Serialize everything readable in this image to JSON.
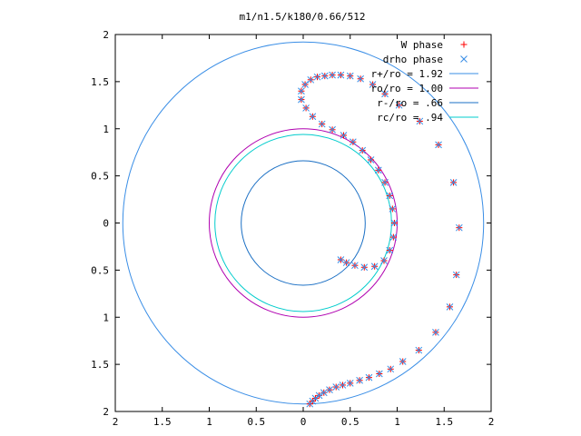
{
  "chart_data": {
    "type": "scatter",
    "title": "m1/n1.5/k180/0.66/512",
    "xlabel": "",
    "ylabel": "",
    "xlim": [
      -2,
      2
    ],
    "ylim": [
      -2,
      2
    ],
    "grid": false,
    "legend_position": "top-right",
    "x_tick_labels": [
      "2",
      "1.5",
      "1",
      "0.5",
      "0",
      "0.5",
      "1",
      "1.5",
      "2"
    ],
    "y_tick_labels": [
      "2",
      "1.5",
      "1",
      "0.5",
      "0",
      "0.5",
      "1",
      "1.5",
      "2"
    ],
    "x_tick_values": [
      -2,
      -1.5,
      -1,
      -0.5,
      0,
      0.5,
      1,
      1.5,
      2
    ],
    "y_tick_values": [
      2,
      1.5,
      1,
      0.5,
      0,
      -0.5,
      -1,
      -1.5,
      -2
    ],
    "series": [
      {
        "name": "W phase",
        "marker": "+",
        "color": "#ff0000",
        "points": [
          [
            0.07,
            -1.92
          ],
          [
            0.1,
            -1.89
          ],
          [
            0.13,
            -1.86
          ],
          [
            0.17,
            -1.83
          ],
          [
            0.22,
            -1.8
          ],
          [
            0.28,
            -1.77
          ],
          [
            0.35,
            -1.74
          ],
          [
            0.42,
            -1.72
          ],
          [
            0.5,
            -1.7
          ],
          [
            0.6,
            -1.67
          ],
          [
            0.7,
            -1.64
          ],
          [
            0.81,
            -1.6
          ],
          [
            0.93,
            -1.55
          ],
          [
            1.06,
            -1.47
          ],
          [
            1.23,
            -1.35
          ],
          [
            1.41,
            -1.16
          ],
          [
            1.56,
            -0.89
          ],
          [
            1.63,
            -0.55
          ],
          [
            1.66,
            -0.05
          ],
          [
            1.6,
            0.43
          ],
          [
            1.44,
            0.83
          ],
          [
            1.24,
            1.08
          ],
          [
            1.02,
            1.25
          ],
          [
            0.87,
            1.37
          ],
          [
            0.74,
            1.47
          ],
          [
            0.61,
            1.53
          ],
          [
            0.5,
            1.56
          ],
          [
            0.4,
            1.57
          ],
          [
            0.31,
            1.57
          ],
          [
            0.23,
            1.56
          ],
          [
            0.15,
            1.55
          ],
          [
            0.08,
            1.52
          ],
          [
            0.02,
            1.47
          ],
          [
            -0.02,
            1.4
          ],
          [
            -0.02,
            1.31
          ],
          [
            0.03,
            1.22
          ],
          [
            0.1,
            1.13
          ],
          [
            0.2,
            1.05
          ],
          [
            0.31,
            0.99
          ],
          [
            0.43,
            0.93
          ],
          [
            0.53,
            0.86
          ],
          [
            0.63,
            0.77
          ],
          [
            0.72,
            0.67
          ],
          [
            0.8,
            0.56
          ],
          [
            0.87,
            0.43
          ],
          [
            0.92,
            0.29
          ],
          [
            0.95,
            0.15
          ],
          [
            0.97,
            0.0
          ],
          [
            0.96,
            -0.15
          ],
          [
            0.92,
            -0.29
          ],
          [
            0.86,
            -0.4
          ],
          [
            0.76,
            -0.46
          ],
          [
            0.65,
            -0.47
          ],
          [
            0.55,
            -0.45
          ],
          [
            0.46,
            -0.42
          ],
          [
            0.4,
            -0.39
          ]
        ]
      },
      {
        "name": "drho phase",
        "marker": "x",
        "color": "#3a8ee6",
        "points": [
          [
            0.07,
            -1.92
          ],
          [
            0.1,
            -1.89
          ],
          [
            0.13,
            -1.86
          ],
          [
            0.17,
            -1.83
          ],
          [
            0.22,
            -1.8
          ],
          [
            0.28,
            -1.77
          ],
          [
            0.35,
            -1.74
          ],
          [
            0.42,
            -1.72
          ],
          [
            0.5,
            -1.7
          ],
          [
            0.6,
            -1.67
          ],
          [
            0.7,
            -1.64
          ],
          [
            0.81,
            -1.6
          ],
          [
            0.93,
            -1.55
          ],
          [
            1.06,
            -1.47
          ],
          [
            1.23,
            -1.35
          ],
          [
            1.41,
            -1.16
          ],
          [
            1.56,
            -0.89
          ],
          [
            1.63,
            -0.55
          ],
          [
            1.66,
            -0.05
          ],
          [
            1.6,
            0.43
          ],
          [
            1.44,
            0.83
          ],
          [
            1.24,
            1.08
          ],
          [
            1.02,
            1.25
          ],
          [
            0.87,
            1.37
          ],
          [
            0.74,
            1.47
          ],
          [
            0.61,
            1.53
          ],
          [
            0.5,
            1.56
          ],
          [
            0.4,
            1.57
          ],
          [
            0.31,
            1.57
          ],
          [
            0.23,
            1.56
          ],
          [
            0.15,
            1.55
          ],
          [
            0.08,
            1.52
          ],
          [
            0.02,
            1.47
          ],
          [
            -0.02,
            1.4
          ],
          [
            -0.02,
            1.31
          ],
          [
            0.03,
            1.22
          ],
          [
            0.1,
            1.13
          ],
          [
            0.2,
            1.05
          ],
          [
            0.31,
            0.99
          ],
          [
            0.43,
            0.93
          ],
          [
            0.53,
            0.86
          ],
          [
            0.63,
            0.77
          ],
          [
            0.72,
            0.67
          ],
          [
            0.8,
            0.56
          ],
          [
            0.87,
            0.43
          ],
          [
            0.92,
            0.29
          ],
          [
            0.95,
            0.15
          ],
          [
            0.97,
            0.0
          ],
          [
            0.96,
            -0.15
          ],
          [
            0.92,
            -0.29
          ],
          [
            0.86,
            -0.4
          ],
          [
            0.76,
            -0.46
          ],
          [
            0.65,
            -0.47
          ],
          [
            0.55,
            -0.45
          ],
          [
            0.46,
            -0.42
          ],
          [
            0.4,
            -0.39
          ]
        ]
      },
      {
        "name": "r+/ro = 1.92",
        "type": "circle",
        "radius": 1.92,
        "color": "#3a8ee6"
      },
      {
        "name": "ro/ro = 1.00",
        "type": "circle",
        "radius": 1.0,
        "color": "#b000b0"
      },
      {
        "name": "r-/ro = .66",
        "type": "circle",
        "radius": 0.66,
        "color": "#1a6fc4"
      },
      {
        "name": "rc/ro = .94",
        "type": "circle",
        "radius": 0.94,
        "color": "#00cccc"
      }
    ]
  }
}
